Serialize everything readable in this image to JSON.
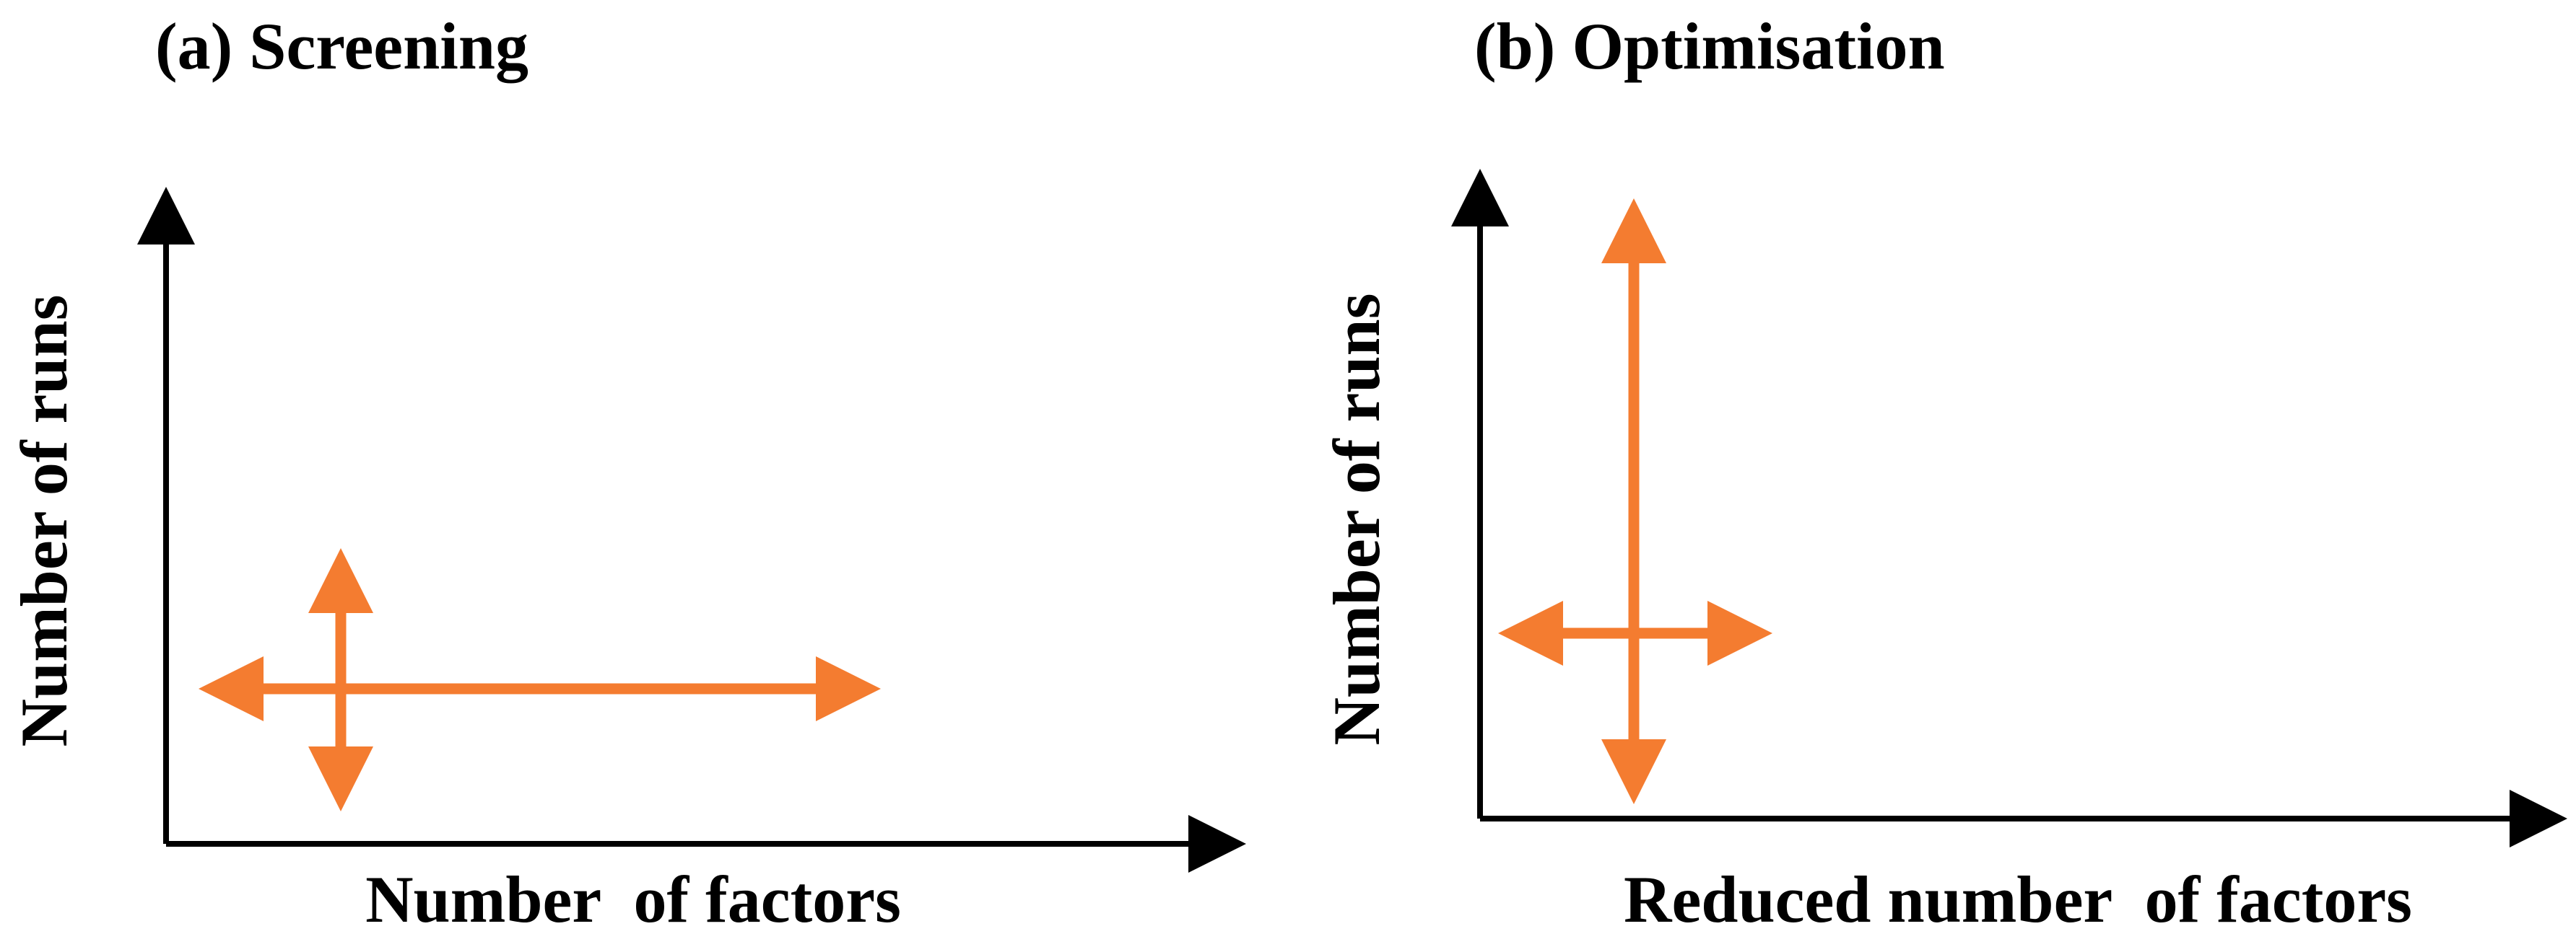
{
  "colors": {
    "axis": "#000000",
    "arrow": "#f47c30",
    "background": "#ffffff",
    "text": "#000000"
  },
  "panels": [
    {
      "title": "(a) Screening",
      "x_axis_label": "Number  of factors",
      "y_axis_label": "Number  of runs",
      "arrows": [
        "horizontal-double-arrow-long",
        "vertical-double-arrow-short"
      ]
    },
    {
      "title": "(b) Optimisation",
      "x_axis_label": "Reduced number  of factors",
      "y_axis_label": "Number  of runs",
      "arrows": [
        "horizontal-double-arrow-short",
        "vertical-double-arrow-long"
      ]
    }
  ]
}
